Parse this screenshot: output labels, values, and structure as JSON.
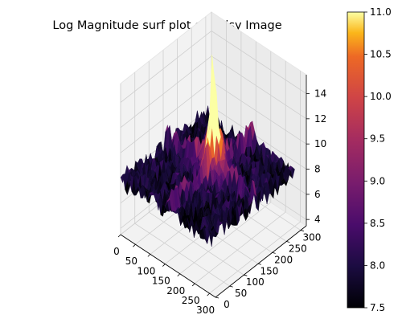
{
  "chart_data": {
    "type": "surface",
    "title": "Log Magnitude surf plot of Noisy Image",
    "x_ticks": [
      0,
      50,
      100,
      150,
      200,
      250,
      300
    ],
    "y_ticks": [
      0,
      50,
      100,
      150,
      200,
      250,
      300
    ],
    "z_ticks": [
      4,
      6,
      8,
      10,
      12,
      14
    ],
    "xlim": [
      0,
      320
    ],
    "ylim": [
      0,
      320
    ],
    "zlim": [
      3.5,
      15.5
    ],
    "surface": {
      "base_level": 7.8,
      "noise_amplitude": 0.8,
      "cross_ridge_level": 8.9,
      "peak": {
        "x": 160,
        "y": 160,
        "z": 15.3
      }
    },
    "colorbar": {
      "colormap": "inferno",
      "min": 7.5,
      "max": 11.0,
      "ticks": [
        "7.5",
        "8.0",
        "8.5",
        "9.0",
        "9.5",
        "10.0",
        "10.5",
        "11.0"
      ]
    },
    "grid": true
  }
}
